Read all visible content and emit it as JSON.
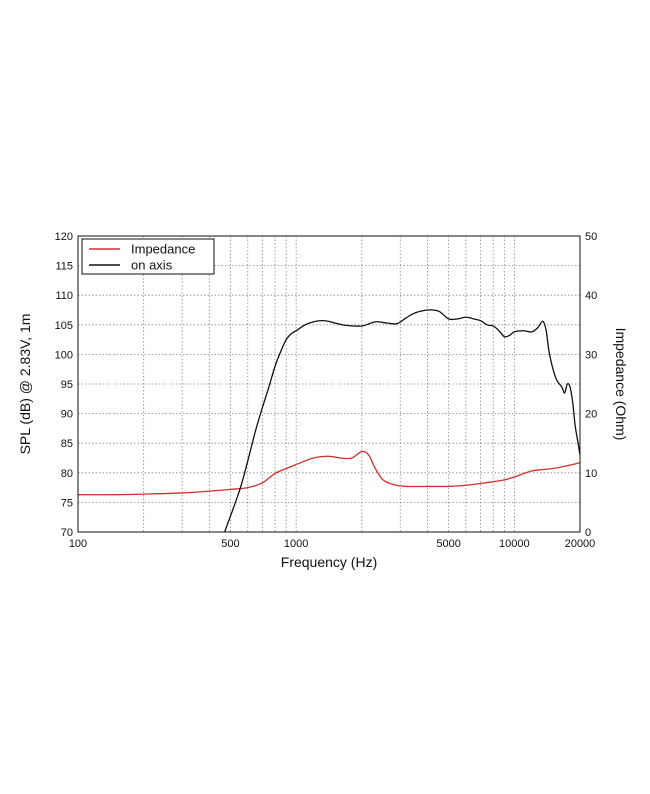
{
  "chart_data": {
    "type": "line",
    "xlabel": "Frequency (Hz)",
    "ylabel": "SPL (dB) @ 2.83V, 1m",
    "y2label": "Impedance (Ohm)",
    "x_scale": "log",
    "xlim": [
      100,
      20000
    ],
    "ylim": [
      70,
      120
    ],
    "y2lim": [
      0,
      50
    ],
    "grid": true,
    "legend_position": "top-left",
    "x_ticks": [
      100,
      500,
      1000,
      5000,
      10000,
      20000
    ],
    "x_tick_labels": [
      "100",
      "500",
      "1000",
      "5000",
      "10000",
      "20000"
    ],
    "x_grid_lines": [
      200,
      300,
      400,
      500,
      600,
      700,
      800,
      900,
      1000,
      2000,
      3000,
      4000,
      5000,
      6000,
      7000,
      8000,
      9000,
      10000
    ],
    "y_ticks": [
      70,
      75,
      80,
      85,
      90,
      95,
      100,
      105,
      110,
      115,
      120
    ],
    "y2_ticks": [
      0,
      10,
      20,
      30,
      40,
      50
    ],
    "series": [
      {
        "name": "Impedance",
        "axis": "right",
        "color": "#d0312d",
        "x": [
          100,
          150,
          200,
          300,
          400,
          500,
          600,
          700,
          800,
          900,
          1000,
          1200,
          1400,
          1600,
          1800,
          2000,
          2150,
          2300,
          2500,
          2800,
          3200,
          4000,
          5000,
          6000,
          7000,
          8000,
          9000,
          10000,
          12000,
          14000,
          16000,
          18000,
          20000
        ],
        "values": [
          6.3,
          6.3,
          6.4,
          6.6,
          6.9,
          7.2,
          7.5,
          8.3,
          9.9,
          10.7,
          11.4,
          12.5,
          12.8,
          12.5,
          12.5,
          13.6,
          13.0,
          10.8,
          8.8,
          8.0,
          7.7,
          7.7,
          7.7,
          7.9,
          8.2,
          8.5,
          8.8,
          9.3,
          10.3,
          10.6,
          10.9,
          11.3,
          11.7
        ]
      },
      {
        "name": "on axis",
        "axis": "left",
        "color": "#111111",
        "x": [
          470,
          550,
          600,
          650,
          700,
          750,
          800,
          850,
          900,
          950,
          1000,
          1100,
          1200,
          1300,
          1400,
          1500,
          1700,
          2000,
          2300,
          2600,
          2900,
          3200,
          3500,
          4000,
          4500,
          5000,
          5500,
          6000,
          6500,
          7000,
          7500,
          8000,
          8500,
          9000,
          9500,
          10000,
          11000,
          12000,
          12800,
          13500,
          14000,
          14500,
          15500,
          16500,
          17000,
          17500,
          18000,
          18500,
          19000,
          19500,
          20000
        ],
        "values": [
          70,
          77,
          82,
          87,
          91,
          94.5,
          98,
          100.5,
          102.5,
          103.5,
          104,
          105,
          105.5,
          105.7,
          105.6,
          105.3,
          104.9,
          104.8,
          105.5,
          105.3,
          105.2,
          106.2,
          107,
          107.5,
          107.3,
          106,
          106,
          106.3,
          106,
          105.7,
          105,
          104.8,
          104,
          103,
          103.2,
          103.8,
          104,
          103.8,
          104.5,
          105.6,
          104,
          100,
          96,
          94.5,
          93.5,
          95,
          94.5,
          92,
          88,
          85.5,
          83
        ]
      }
    ]
  }
}
